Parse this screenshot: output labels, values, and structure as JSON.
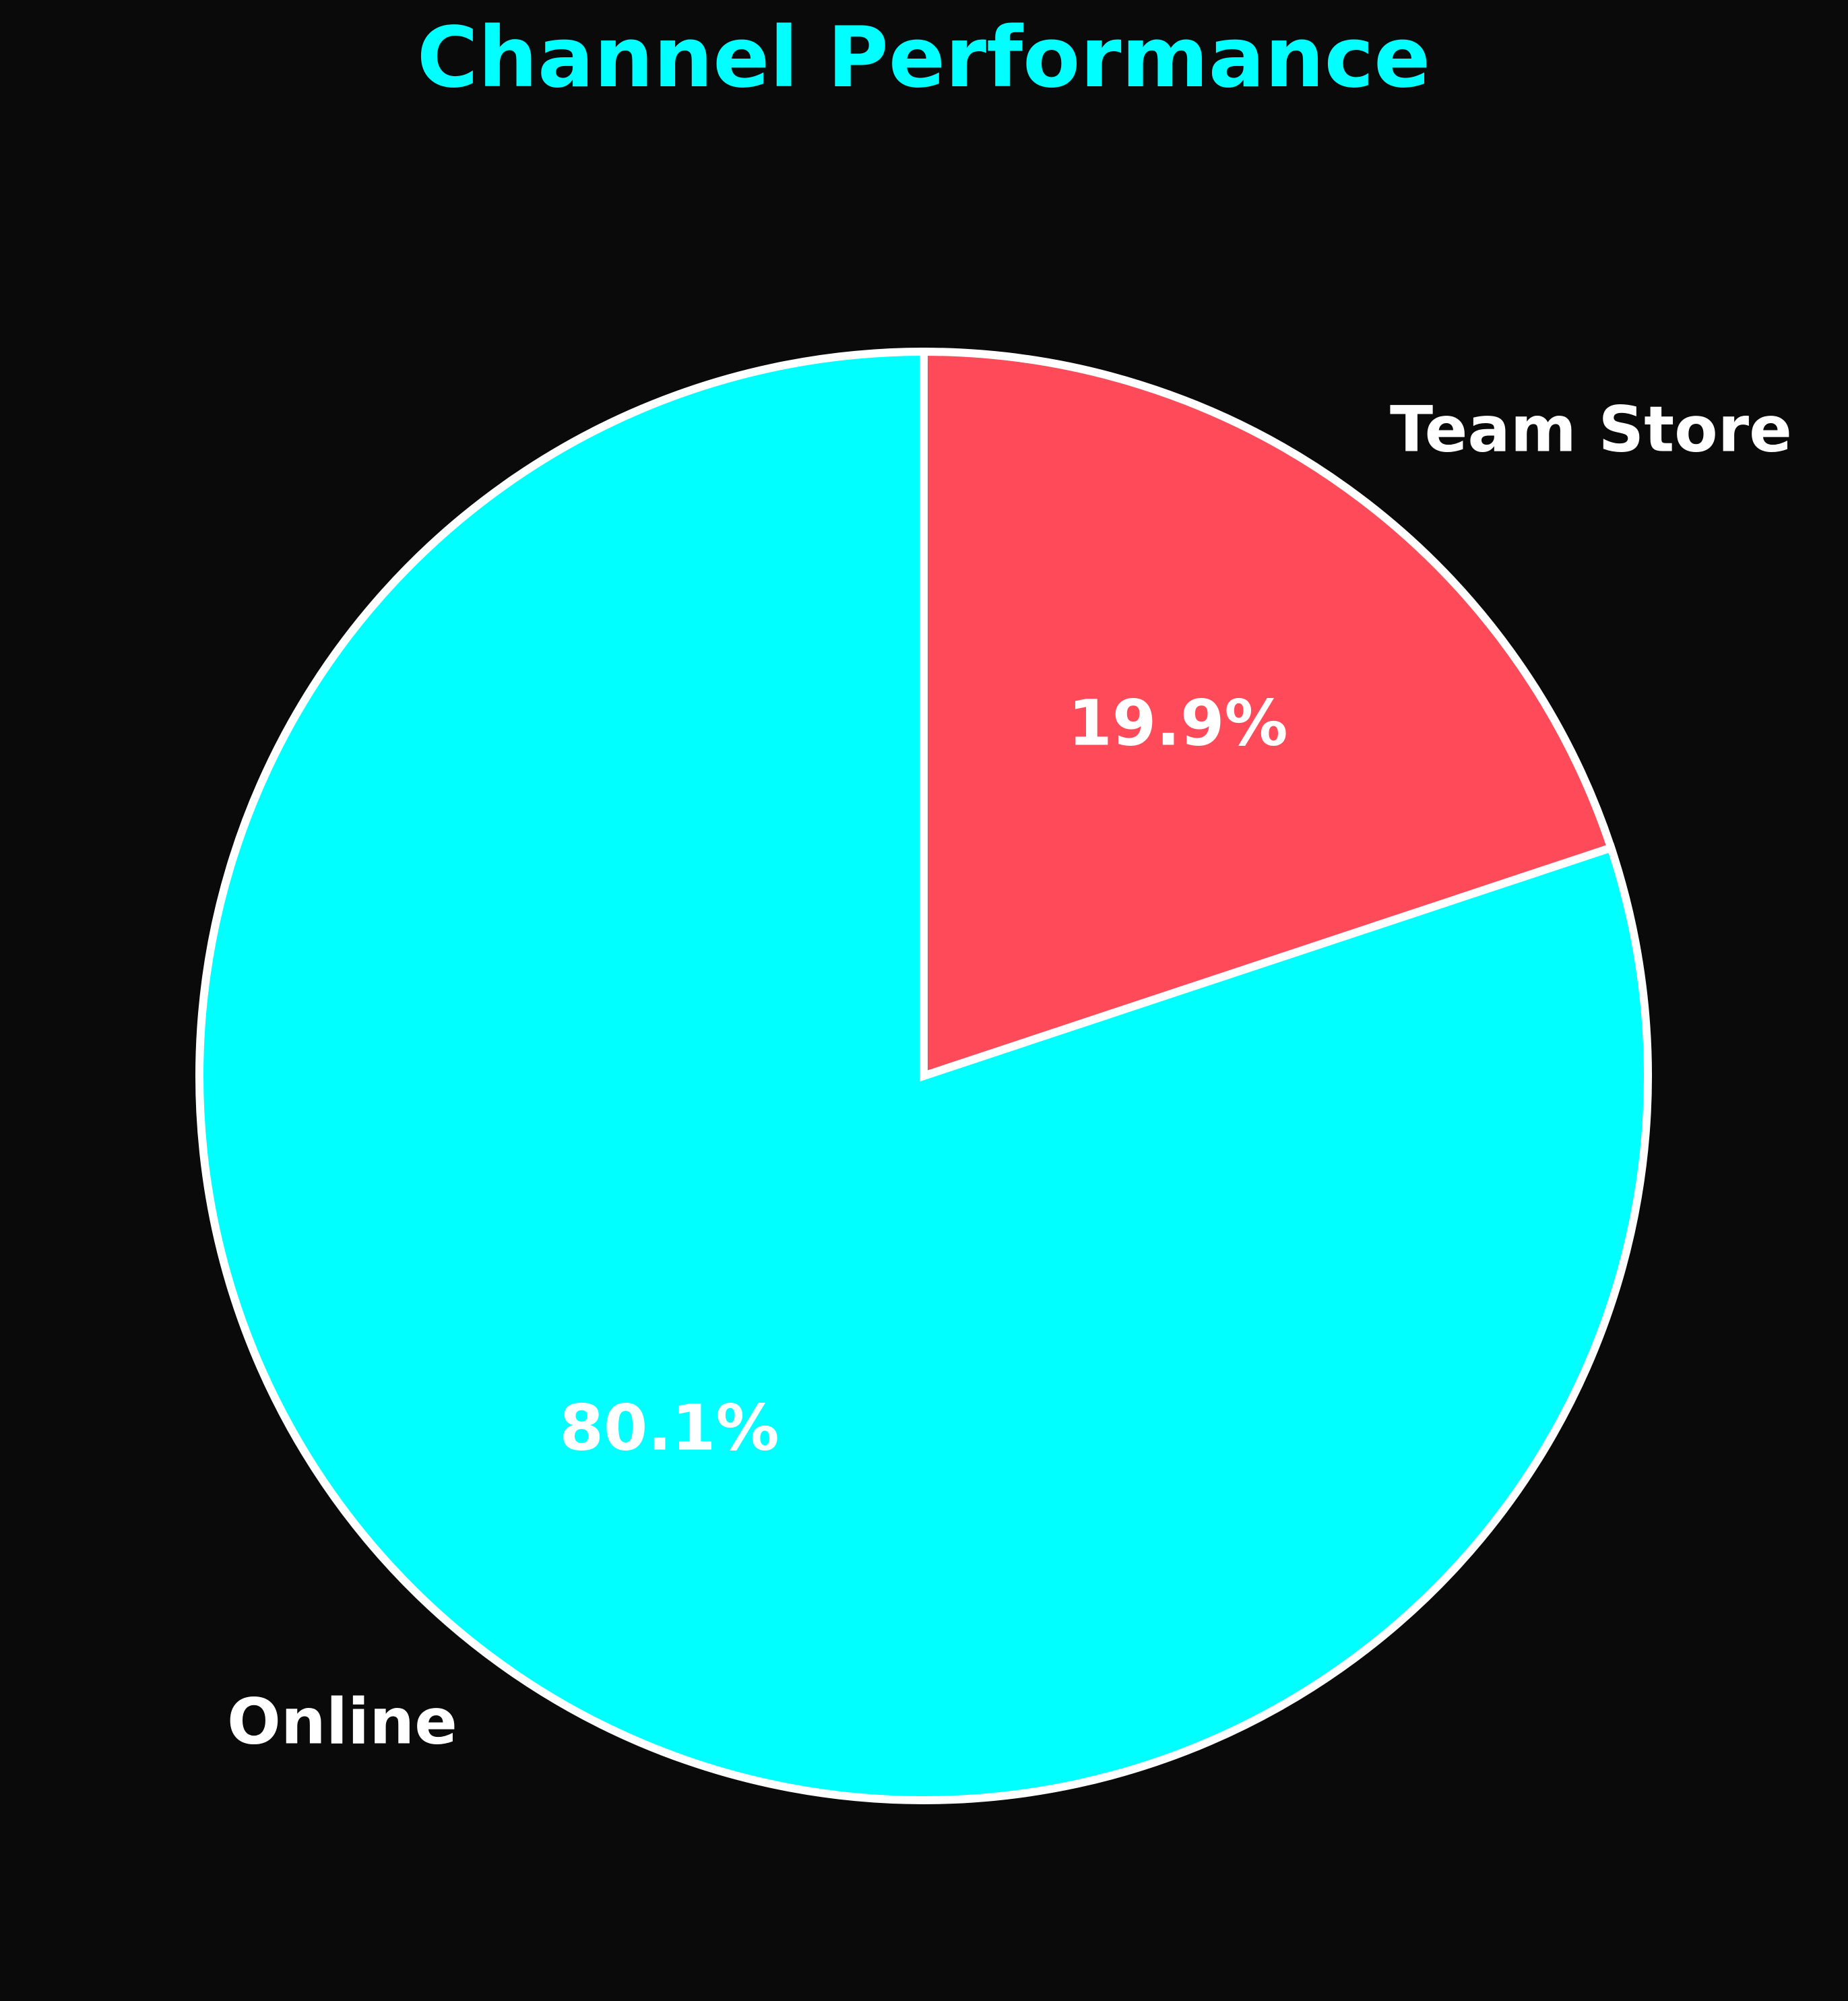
{
  "chart_data": {
    "type": "pie",
    "title": "Channel Performance",
    "title_color": "#00ffff",
    "background": "#0a0a0a",
    "start_angle_deg": 90,
    "direction": "clockwise",
    "slice_edge_color": "#ffffff",
    "slices": [
      {
        "label": "Team Store",
        "value": 19.9,
        "pct_label": "19.9%",
        "color": "#ff4a5a"
      },
      {
        "label": "Online",
        "value": 80.1,
        "pct_label": "80.1%",
        "color": "#00ffff"
      }
    ]
  }
}
